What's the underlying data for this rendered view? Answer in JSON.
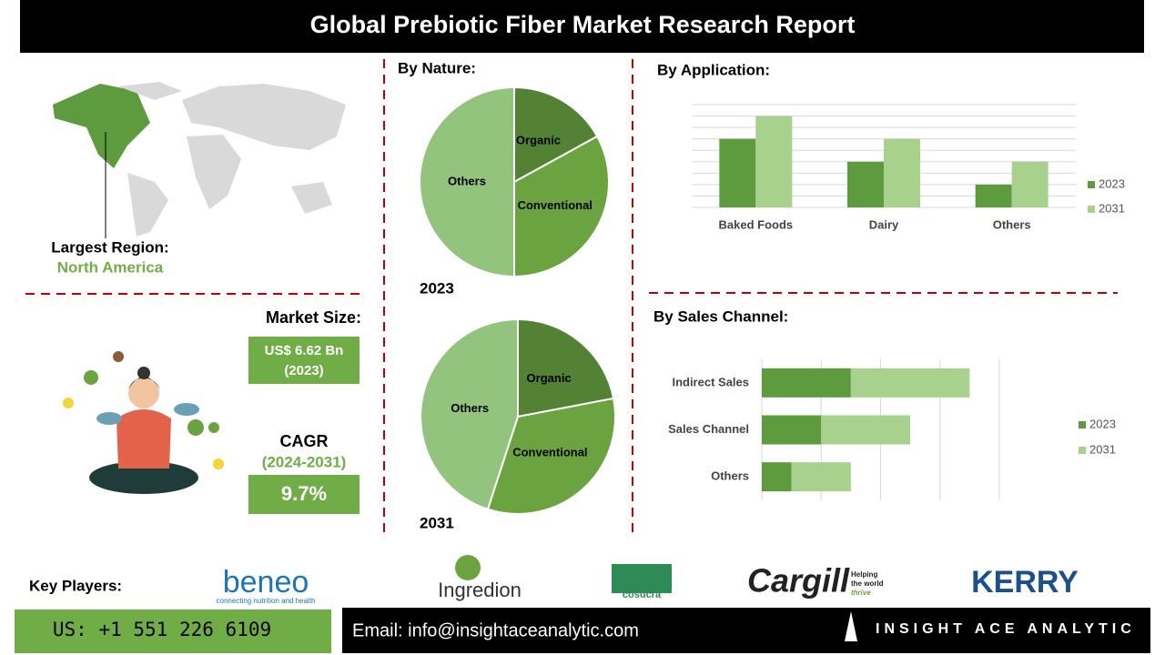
{
  "header": {
    "title": "Global Prebiotic Fiber Market Research Report"
  },
  "region": {
    "label": "Largest Region:",
    "value": "North America"
  },
  "market_size": {
    "label": "Market Size:",
    "value": "US$ 6.62 Bn",
    "year": "(2023)"
  },
  "cagr": {
    "label": "CAGR",
    "period": "(2024-2031)",
    "value": "9.7%"
  },
  "nature_heading": "By Nature:",
  "chart_data": [
    {
      "type": "pie",
      "title": "2023",
      "categories": [
        "Organic",
        "Conventional",
        "Others"
      ],
      "values": [
        17,
        33,
        50
      ],
      "colors": [
        "#548235",
        "#6aa33f",
        "#93c47d"
      ]
    },
    {
      "type": "pie",
      "title": "2031",
      "categories": [
        "Organic",
        "Conventional",
        "Others"
      ],
      "values": [
        22,
        33,
        45
      ],
      "colors": [
        "#548235",
        "#6aa33f",
        "#93c47d"
      ]
    },
    {
      "type": "bar",
      "title": "By Application:",
      "categories": [
        "Baked Foods",
        "Dairy",
        "Others"
      ],
      "series": [
        {
          "name": "2023",
          "color": "#5e9b3e",
          "values": [
            6,
            4,
            2
          ]
        },
        {
          "name": "2031",
          "color": "#a9d18e",
          "values": [
            8,
            6,
            4
          ]
        }
      ],
      "ylim": [
        0,
        9
      ],
      "grid": true
    },
    {
      "type": "hbar-stacked",
      "title": "By Sales Channel:",
      "categories": [
        "Indirect Sales",
        "Sales Channel",
        "Others"
      ],
      "series": [
        {
          "name": "2023",
          "color": "#5e9b3e",
          "values": [
            1.5,
            1.0,
            0.5
          ]
        },
        {
          "name": "2031",
          "color": "#a9d18e",
          "values": [
            2.0,
            1.5,
            1.0
          ]
        }
      ],
      "xlim": [
        0,
        4
      ],
      "grid": true
    }
  ],
  "key_players": {
    "label": "Key Players:",
    "companies": [
      "beneo",
      "Ingredion",
      "cosucra",
      "Cargill",
      "KERRY"
    ],
    "beneo_tagline": "connecting nutrition and health",
    "cargill_tagline": [
      "Helping",
      "the world",
      "thrive"
    ]
  },
  "footer": {
    "phone": "US: +1 551 226 6109",
    "email": "Email: info@insightaceanalytic.com",
    "brand": "INSIGHT ACE ANALYTIC"
  }
}
